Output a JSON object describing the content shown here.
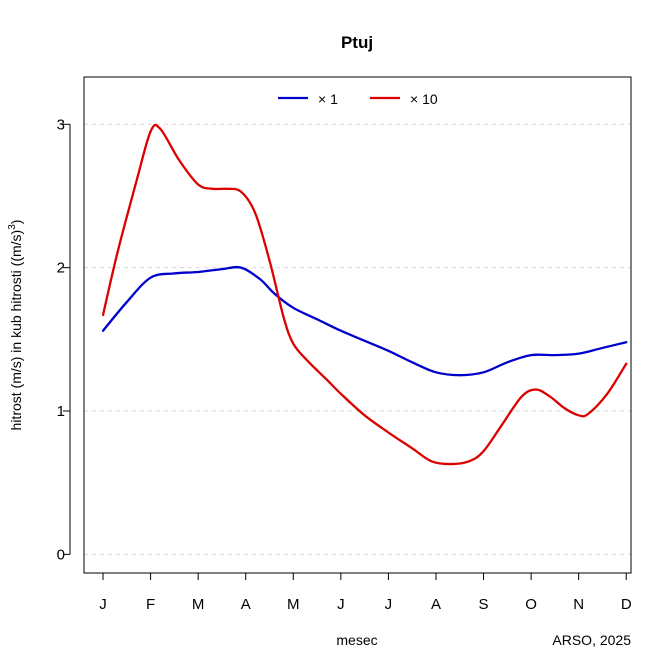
{
  "chart_data": {
    "type": "line",
    "title": "Ptuj",
    "xlabel": "mesec",
    "ylabel_main": "hitrost (m/s) in kub hitrosti ((m/s)",
    "ylabel_sup": "3",
    "ylabel_close": ")",
    "credit": "ARSO, 2025",
    "x_ticks": [
      "J",
      "F",
      "M",
      "A",
      "M",
      "J",
      "J",
      "A",
      "S",
      "O",
      "N",
      "D"
    ],
    "y_ticks": [
      0,
      1,
      2,
      3
    ],
    "xlim": [
      0.6,
      12.1
    ],
    "ylim": [
      -0.13,
      3.33
    ],
    "grid": "horizontal dashed",
    "legend_position": "top",
    "series": [
      {
        "name": "× 1",
        "color": "#0000cc",
        "points": [
          [
            1,
            1.56
          ],
          [
            1.5,
            1.76
          ],
          [
            2,
            1.93
          ],
          [
            2.5,
            1.96
          ],
          [
            3,
            1.97
          ],
          [
            3.5,
            1.99
          ],
          [
            3.9,
            2.0
          ],
          [
            4.3,
            1.92
          ],
          [
            4.6,
            1.82
          ],
          [
            5,
            1.72
          ],
          [
            5.5,
            1.64
          ],
          [
            6,
            1.56
          ],
          [
            6.5,
            1.49
          ],
          [
            7,
            1.42
          ],
          [
            7.5,
            1.34
          ],
          [
            8,
            1.27
          ],
          [
            8.5,
            1.25
          ],
          [
            9,
            1.27
          ],
          [
            9.5,
            1.34
          ],
          [
            10,
            1.39
          ],
          [
            10.5,
            1.39
          ],
          [
            11,
            1.4
          ],
          [
            11.5,
            1.44
          ],
          [
            12,
            1.48
          ]
        ]
      },
      {
        "name": "× 10",
        "color": "#dd0000",
        "points": [
          [
            1,
            1.67
          ],
          [
            1.3,
            2.1
          ],
          [
            1.7,
            2.6
          ],
          [
            2,
            2.95
          ],
          [
            2.2,
            2.97
          ],
          [
            2.6,
            2.75
          ],
          [
            3,
            2.58
          ],
          [
            3.3,
            2.55
          ],
          [
            3.6,
            2.55
          ],
          [
            3.9,
            2.53
          ],
          [
            4.2,
            2.38
          ],
          [
            4.5,
            2.05
          ],
          [
            4.8,
            1.65
          ],
          [
            5,
            1.47
          ],
          [
            5.3,
            1.35
          ],
          [
            5.7,
            1.22
          ],
          [
            6,
            1.12
          ],
          [
            6.5,
            0.97
          ],
          [
            7,
            0.85
          ],
          [
            7.5,
            0.74
          ],
          [
            7.9,
            0.65
          ],
          [
            8.3,
            0.63
          ],
          [
            8.7,
            0.65
          ],
          [
            9,
            0.72
          ],
          [
            9.4,
            0.91
          ],
          [
            9.8,
            1.1
          ],
          [
            10.1,
            1.15
          ],
          [
            10.4,
            1.1
          ],
          [
            10.7,
            1.02
          ],
          [
            11,
            0.97
          ],
          [
            11.2,
            0.98
          ],
          [
            11.6,
            1.12
          ],
          [
            12,
            1.33
          ]
        ]
      }
    ]
  }
}
